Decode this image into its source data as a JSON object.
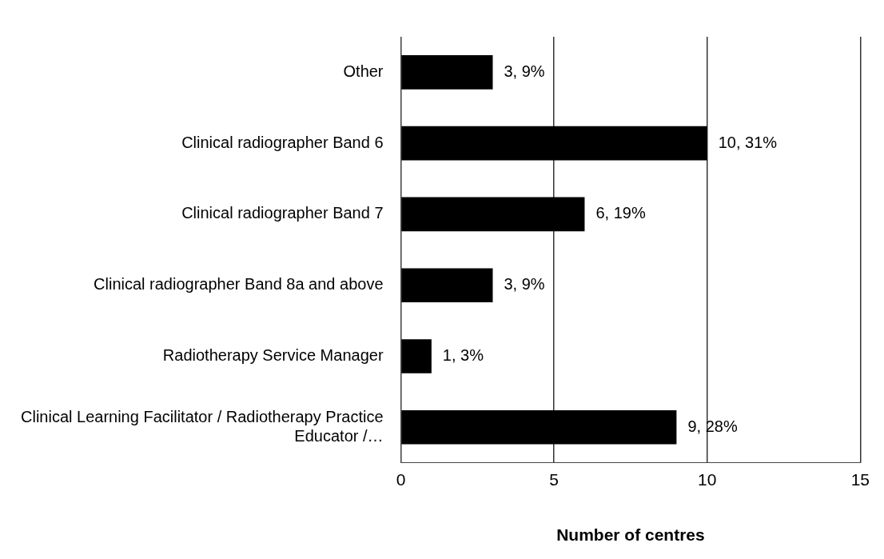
{
  "chart_data": {
    "type": "bar",
    "orientation": "horizontal",
    "xlabel": "Number of centres",
    "categories": [
      "Other",
      "Clinical radiographer Band 6",
      "Clinical radiographer Band 7",
      "Clinical radiographer Band 8a and above",
      "Radiotherapy Service Manager",
      "Clinical Learning Facilitator / Radiotherapy Practice Educator /…"
    ],
    "values": [
      3,
      10,
      6,
      3,
      1,
      9
    ],
    "value_labels": [
      "3, 9%",
      "10, 31%",
      "6, 19%",
      "3, 9%",
      "1, 3%",
      "9, 28%"
    ],
    "color": "#000000",
    "xlim": [
      0,
      15
    ],
    "xticks": [
      0,
      5,
      10,
      15
    ],
    "grid": "x",
    "legend": false
  }
}
